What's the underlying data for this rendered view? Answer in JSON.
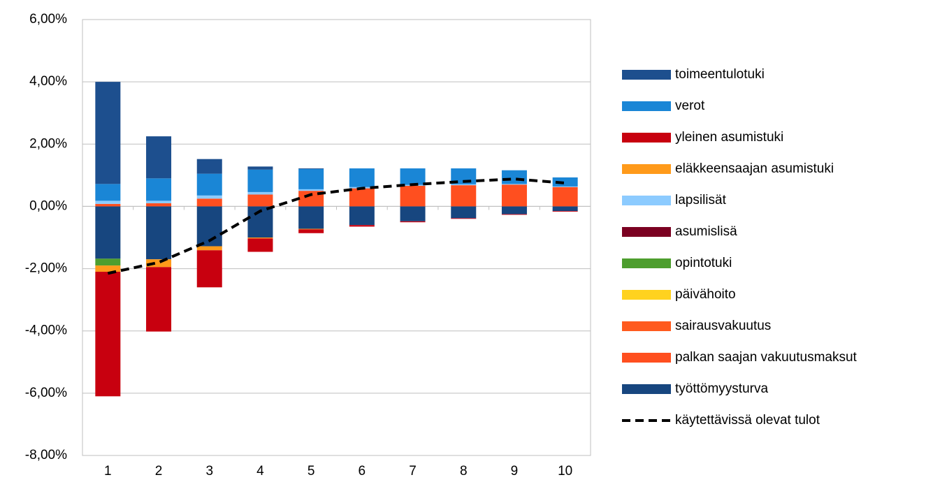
{
  "chart_data": {
    "type": "bar",
    "stacked": true,
    "grid": true,
    "categories": [
      "1",
      "2",
      "3",
      "4",
      "5",
      "6",
      "7",
      "8",
      "9",
      "10"
    ],
    "ylim": [
      -8,
      6
    ],
    "yticks": [
      {
        "value": -8,
        "label": "-8,00%"
      },
      {
        "value": -6,
        "label": "-6,00%"
      },
      {
        "value": -4,
        "label": "-4,00%"
      },
      {
        "value": -2,
        "label": "-2,00%"
      },
      {
        "value": 0,
        "label": "0,00%"
      },
      {
        "value": 2,
        "label": "2,00%"
      },
      {
        "value": 4,
        "label": "4,00%"
      },
      {
        "value": 6,
        "label": "6,00%"
      }
    ],
    "series": [
      {
        "name": "toimeentulotuki",
        "color": "#1d4f8e",
        "values": [
          3.28,
          1.35,
          0.47,
          0.1,
          0.02,
          0,
          0,
          0,
          0,
          0
        ]
      },
      {
        "name": "verot",
        "color": "#1a86d6",
        "values": [
          0.54,
          0.72,
          0.7,
          0.72,
          0.65,
          0.6,
          0.53,
          0.51,
          0.44,
          0.29
        ]
      },
      {
        "name": "yleinen asumistuki",
        "color": "#c8000f",
        "values": [
          -4.0,
          -2.07,
          -1.19,
          -0.43,
          -0.12,
          -0.05,
          -0.03,
          -0.02,
          -0.02,
          -0.02
        ]
      },
      {
        "name": "eläkkeensaajan asumistuki",
        "color": "#ff9a1a",
        "values": [
          -0.2,
          -0.25,
          -0.13,
          -0.03,
          -0.02,
          0,
          0,
          0,
          0,
          0
        ]
      },
      {
        "name": "lapsilisät",
        "color": "#8ccbff",
        "values": [
          0.1,
          0.08,
          0.1,
          0.08,
          0.05,
          0.04,
          0.03,
          0.03,
          0.02,
          0.02
        ]
      },
      {
        "name": "asumislisä",
        "color": "#7b0021",
        "values": [
          0,
          0,
          0,
          0,
          0,
          0,
          0,
          0,
          0,
          0
        ]
      },
      {
        "name": "opintotuki",
        "color": "#4d9e2e",
        "values": [
          -0.22,
          0,
          0,
          0,
          0,
          0,
          0,
          0,
          0,
          0
        ]
      },
      {
        "name": "päivähoito",
        "color": "#ffd21f",
        "values": [
          0,
          0,
          0,
          0,
          0,
          0,
          0,
          0,
          0,
          0
        ]
      },
      {
        "name": "sairausvakuutus",
        "color": "#ff5a1e",
        "values": [
          0,
          0,
          0,
          0,
          0,
          0,
          0,
          0,
          0,
          0
        ]
      },
      {
        "name": "palkan saajan vakuutusmaksut",
        "color": "#ff4f1f",
        "values": [
          0.08,
          0.1,
          0.25,
          0.38,
          0.5,
          0.58,
          0.66,
          0.68,
          0.7,
          0.62
        ]
      },
      {
        "name": "työttömyysturva",
        "color": "#17467f",
        "values": [
          -1.68,
          -1.7,
          -1.28,
          -1.0,
          -0.72,
          -0.6,
          -0.48,
          -0.38,
          -0.25,
          -0.15
        ]
      }
    ],
    "line": {
      "name": "käytettävissä olevat tulot",
      "color": "#000000",
      "dashed": true,
      "values": [
        -2.15,
        -1.8,
        -1.1,
        -0.15,
        0.38,
        0.58,
        0.7,
        0.8,
        0.88,
        0.75
      ]
    }
  }
}
